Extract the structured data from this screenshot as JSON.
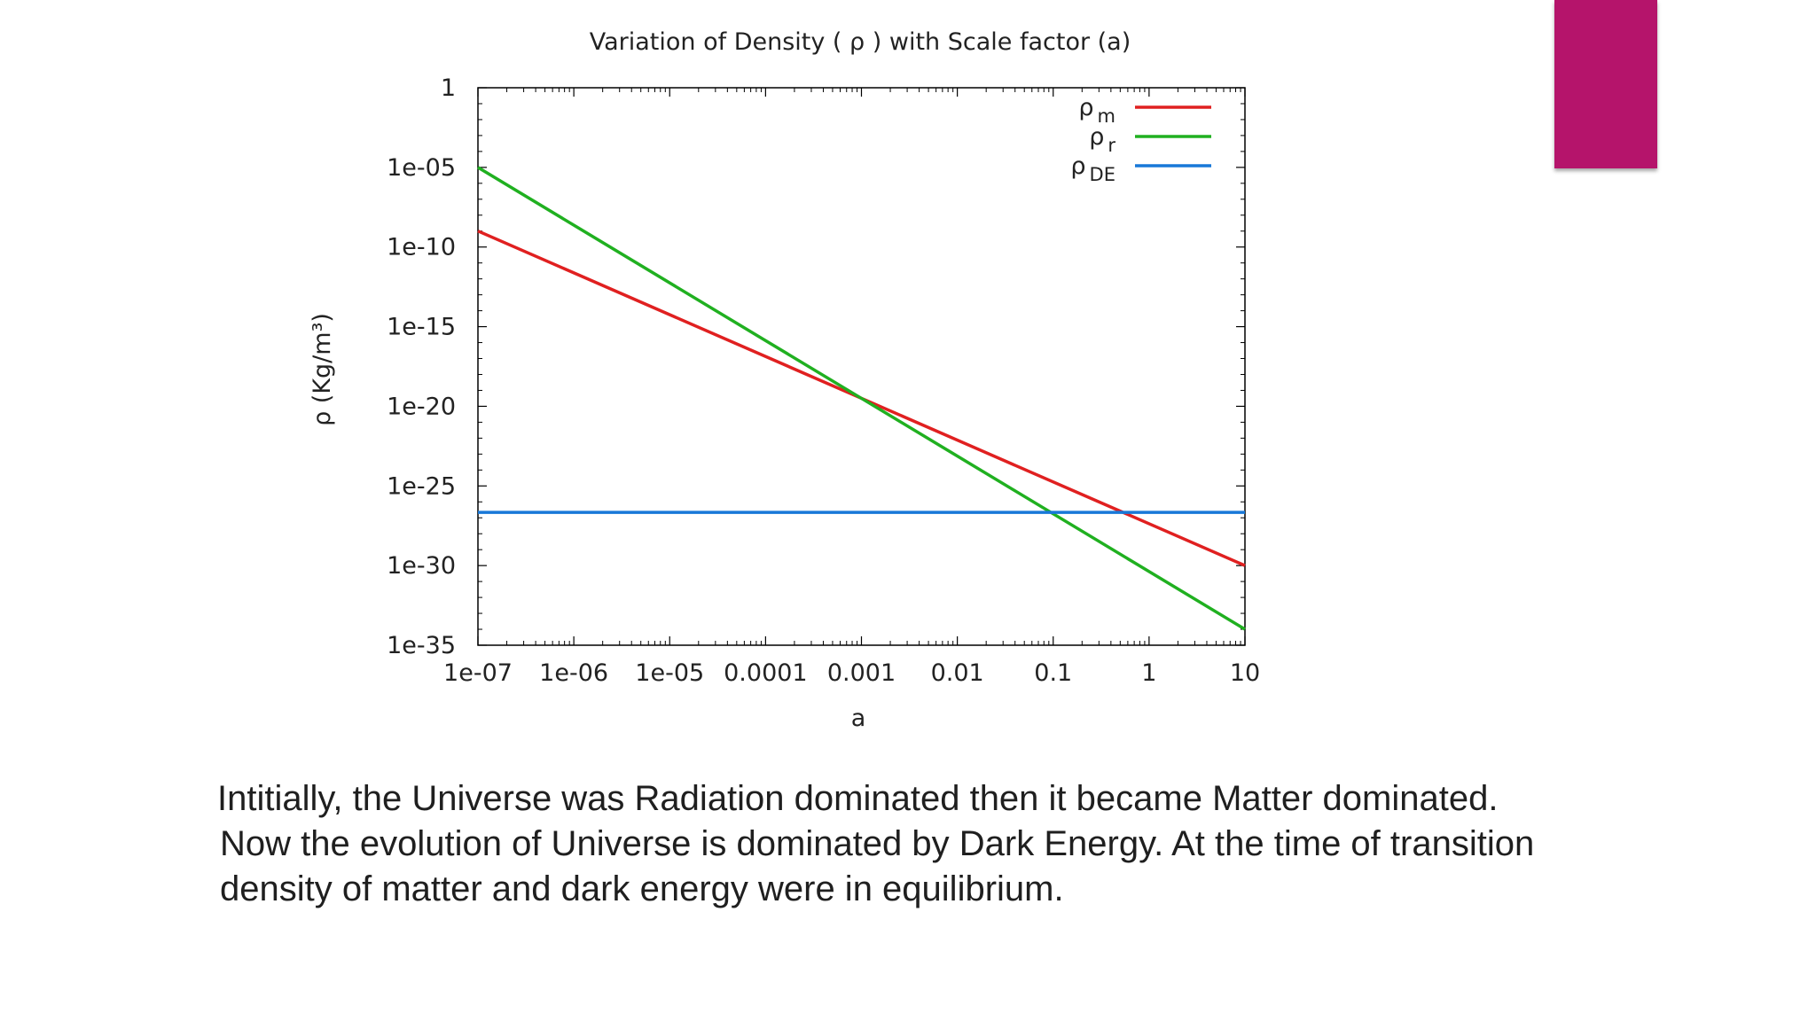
{
  "slide": {
    "accent_color": "#b5146b",
    "caption_lines": [
      "Intitially, the Universe was Radiation dominated then it became Matter dominated.",
      "Now the evolution of Universe is dominated by Dark Energy. At the time of transition",
      "density of matter and dark energy were in equilibrium."
    ]
  },
  "chart_data": {
    "type": "line",
    "title": "Variation of Density ( ρ ) with Scale factor (a)",
    "xlabel": "a",
    "ylabel": "ρ (Kg/m³)",
    "xscale": "log",
    "yscale": "log",
    "xlim": [
      1e-07,
      10
    ],
    "ylim": [
      1e-35,
      1
    ],
    "x_ticks": [
      "1e-07",
      "1e-06",
      "1e-05",
      "0.0001",
      "0.001",
      "0.01",
      "0.1",
      "1",
      "10"
    ],
    "y_ticks": [
      "1",
      "1e-05",
      "1e-10",
      "1e-15",
      "1e-20",
      "1e-25",
      "1e-30",
      "1e-35"
    ],
    "legend_position": "top-right",
    "grid": false,
    "series": [
      {
        "name": "ρm",
        "base": "ρ",
        "sub": "m",
        "color": "#e02020",
        "x": [
          1e-07,
          10
        ],
        "y": [
          1e-09,
          1e-30
        ]
      },
      {
        "name": "ρr",
        "base": "ρ",
        "sub": "r",
        "color": "#20b020",
        "x": [
          1e-07,
          10
        ],
        "y": [
          1e-05,
          1e-34
        ]
      },
      {
        "name": "ρDE",
        "base": "ρ",
        "sub": "DE",
        "color": "#1878d8",
        "x": [
          1e-07,
          10
        ],
        "y": [
          2.2e-27,
          2.2e-27
        ]
      }
    ]
  }
}
